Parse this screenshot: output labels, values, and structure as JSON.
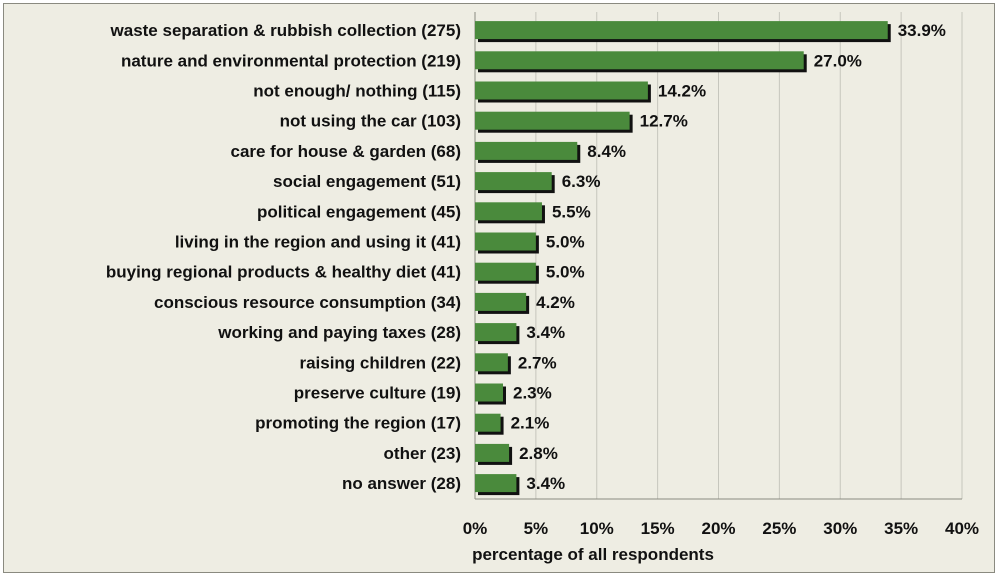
{
  "chart_data": {
    "type": "bar",
    "orientation": "horizontal",
    "categories": [
      "waste separation & rubbish collection (275)",
      "nature and environmental protection (219)",
      "not enough/ nothing (115)",
      "not using the car (103)",
      "care for house & garden (68)",
      "social engagement (51)",
      "political engagement (45)",
      "living in the region and using it (41)",
      "buying regional products & healthy diet (41)",
      "conscious resource consumption (34)",
      "working and paying taxes (28)",
      "raising children (22)",
      "preserve culture (19)",
      "promoting the region (17)",
      "other (23)",
      "no answer (28)"
    ],
    "values": [
      33.9,
      27.0,
      14.2,
      12.7,
      8.4,
      6.3,
      5.5,
      5.0,
      5.0,
      4.2,
      3.4,
      2.7,
      2.3,
      2.1,
      2.8,
      3.4
    ],
    "value_labels": [
      "33.9%",
      "27.0%",
      "14.2%",
      "12.7%",
      "8.4%",
      "6.3%",
      "5.5%",
      "5.0%",
      "5.0%",
      "4.2%",
      "3.4%",
      "2.7%",
      "2.3%",
      "2.1%",
      "2.8%",
      "3.4%"
    ],
    "xlabel": "percentage of all respondents",
    "ylabel": "",
    "xlim": [
      0,
      40
    ],
    "xticks": [
      0,
      5,
      10,
      15,
      20,
      25,
      30,
      35,
      40
    ],
    "xtick_labels": [
      "0%",
      "5%",
      "10%",
      "15%",
      "20%",
      "25%",
      "30%",
      "35%",
      "40%"
    ],
    "grid": "vertical",
    "legend": "none",
    "colors": {
      "bar": "#4a8a3c",
      "bar_shadow": "#111111",
      "background": "#eeede3",
      "grid": "#c6c6bd"
    }
  }
}
